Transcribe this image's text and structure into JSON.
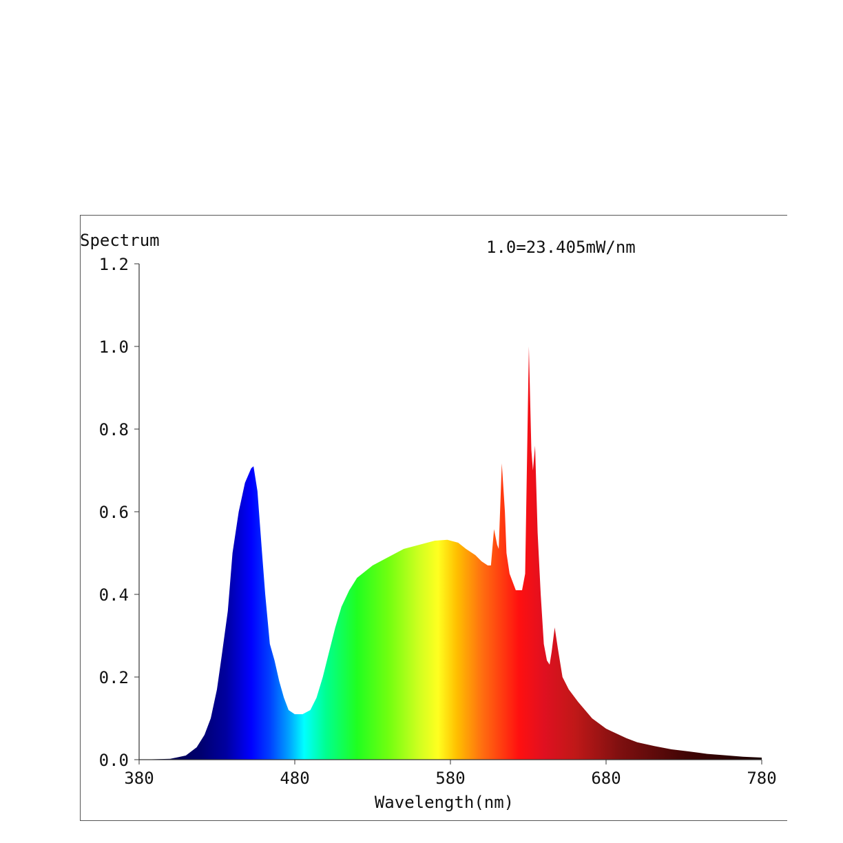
{
  "chart_data": {
    "type": "area",
    "title": "Spectrum",
    "annotation": "1.0=23.405mW/nm",
    "xlabel": "Wavelength(nm)",
    "ylabel": "Spectrum",
    "xlim": [
      380,
      780
    ],
    "ylim": [
      0,
      1.2
    ],
    "xticks": [
      "380",
      "480",
      "580",
      "680",
      "780"
    ],
    "yticks": [
      "0.0",
      "0.2",
      "0.4",
      "0.6",
      "0.8",
      "1.0",
      "1.2"
    ],
    "grid": false,
    "fill": "wavelength-colored spectrum gradient",
    "points": [
      [
        380,
        0
      ],
      [
        400,
        0.002
      ],
      [
        410,
        0.01
      ],
      [
        417,
        0.03
      ],
      [
        422,
        0.06
      ],
      [
        426,
        0.1
      ],
      [
        430,
        0.17
      ],
      [
        433,
        0.25
      ],
      [
        437,
        0.36
      ],
      [
        440,
        0.5
      ],
      [
        444,
        0.6
      ],
      [
        448,
        0.67
      ],
      [
        452,
        0.705
      ],
      [
        453.5,
        0.71
      ],
      [
        456,
        0.65
      ],
      [
        459,
        0.5
      ],
      [
        461,
        0.4
      ],
      [
        464,
        0.28
      ],
      [
        467,
        0.24
      ],
      [
        470,
        0.19
      ],
      [
        473,
        0.15
      ],
      [
        476,
        0.12
      ],
      [
        480,
        0.11
      ],
      [
        485,
        0.11
      ],
      [
        490,
        0.12
      ],
      [
        494,
        0.15
      ],
      [
        498,
        0.2
      ],
      [
        502,
        0.26
      ],
      [
        506,
        0.32
      ],
      [
        510,
        0.37
      ],
      [
        515,
        0.41
      ],
      [
        520,
        0.44
      ],
      [
        530,
        0.47
      ],
      [
        540,
        0.49
      ],
      [
        550,
        0.51
      ],
      [
        560,
        0.52
      ],
      [
        570,
        0.53
      ],
      [
        578,
        0.532
      ],
      [
        585,
        0.525
      ],
      [
        590,
        0.51
      ],
      [
        596,
        0.495
      ],
      [
        600,
        0.48
      ],
      [
        604,
        0.47
      ],
      [
        606,
        0.47
      ],
      [
        608,
        0.558
      ],
      [
        610,
        0.52
      ],
      [
        611,
        0.51
      ],
      [
        613,
        0.717
      ],
      [
        615,
        0.6
      ],
      [
        616,
        0.5
      ],
      [
        618,
        0.45
      ],
      [
        620,
        0.43
      ],
      [
        622,
        0.41
      ],
      [
        626,
        0.41
      ],
      [
        628,
        0.45
      ],
      [
        630.4,
        1.0
      ],
      [
        632,
        0.75
      ],
      [
        633,
        0.7
      ],
      [
        634.4,
        0.76
      ],
      [
        636,
        0.55
      ],
      [
        638,
        0.4
      ],
      [
        640,
        0.28
      ],
      [
        642,
        0.24
      ],
      [
        643.7,
        0.23
      ],
      [
        645,
        0.26
      ],
      [
        647,
        0.32
      ],
      [
        649,
        0.27
      ],
      [
        652,
        0.2
      ],
      [
        656,
        0.17
      ],
      [
        662,
        0.14
      ],
      [
        671,
        0.1
      ],
      [
        680,
        0.075
      ],
      [
        693,
        0.052
      ],
      [
        700,
        0.042
      ],
      [
        711,
        0.033
      ],
      [
        722,
        0.025
      ],
      [
        733,
        0.02
      ],
      [
        745,
        0.014
      ],
      [
        755,
        0.011
      ],
      [
        768,
        0.007
      ],
      [
        780,
        0.005
      ]
    ]
  }
}
